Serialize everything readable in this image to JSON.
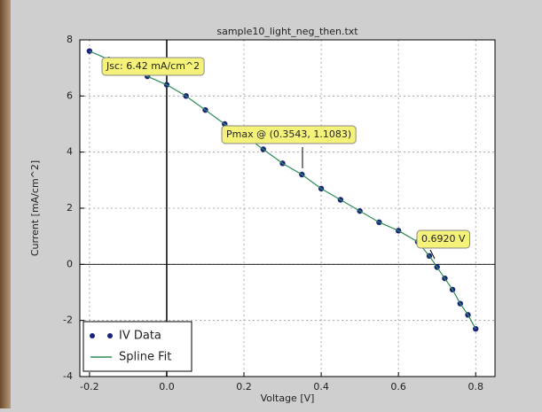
{
  "chart_data": {
    "type": "scatter",
    "title": "sample10_light_neg_then.txt",
    "x_label": "Voltage [V]",
    "y_label": "Current [mA/cm^2]",
    "x": [
      -0.2,
      -0.15,
      -0.1,
      -0.05,
      0,
      0.05,
      0.1,
      0.15,
      0.2,
      0.25,
      0.3,
      0.35,
      0.4,
      0.45,
      0.5,
      0.55,
      0.6,
      0.65,
      0.68,
      0.7,
      0.72,
      0.74,
      0.76,
      0.78,
      0.8
    ],
    "series": [
      {
        "name": "IV Data",
        "color": "#1a237e",
        "style": "markers",
        "values": [
          7.6,
          7.3,
          7.0,
          6.7,
          6.4,
          6.0,
          5.5,
          5.0,
          4.6,
          4.1,
          3.6,
          3.2,
          2.7,
          2.3,
          1.9,
          1.5,
          1.2,
          0.8,
          0.3,
          -0.1,
          -0.5,
          -0.9,
          -1.4,
          -1.8,
          -2.3
        ]
      },
      {
        "name": "Spline Fit",
        "color": "#2e8b57",
        "style": "line",
        "values": [
          7.6,
          7.3,
          7.0,
          6.7,
          6.4,
          6.0,
          5.5,
          5.0,
          4.6,
          4.1,
          3.6,
          3.2,
          2.7,
          2.3,
          1.9,
          1.5,
          1.2,
          0.8,
          0.3,
          -0.1,
          -0.5,
          -0.9,
          -1.4,
          -1.8,
          -2.3
        ]
      }
    ],
    "annotations": [
      "Jsc: 6.42 mA/cm^2",
      "Pmax @ (0.3543, 1.1083)",
      "0.6920 V"
    ],
    "xlim": [
      -0.225,
      0.85
    ],
    "xticks": [
      -0.2,
      {
        "value": 0,
        "label": "0.0"
      },
      0.2,
      0.4,
      0.6,
      0.8
    ],
    "ylim": [
      -4,
      8
    ],
    "yticks": [
      -4,
      -2,
      0,
      2,
      4,
      6,
      8
    ],
    "grid": true,
    "legend": "lower left"
  }
}
